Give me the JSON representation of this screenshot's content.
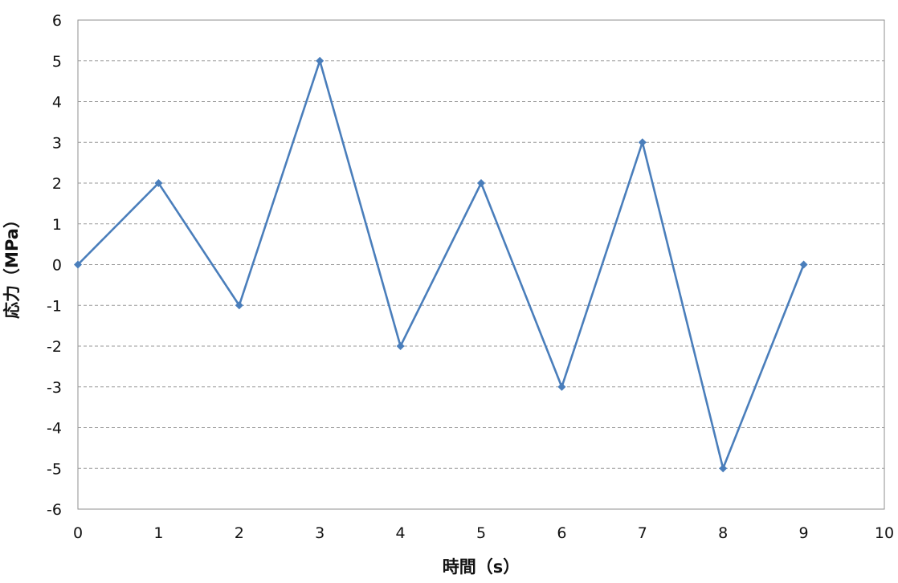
{
  "chart_data": {
    "type": "line",
    "title": "",
    "xlabel": "時間（s）",
    "ylabel": "応力（MPa）",
    "xlim": [
      0,
      10
    ],
    "ylim": [
      -6,
      6
    ],
    "x_ticks": [
      "0",
      "1",
      "2",
      "3",
      "4",
      "5",
      "6",
      "7",
      "8",
      "9",
      "10"
    ],
    "y_ticks": [
      "6",
      "5",
      "4",
      "3",
      "2",
      "1",
      "0",
      "-1",
      "-2",
      "-3",
      "-4",
      "-5",
      "-6"
    ],
    "grid": "horizontal dashed",
    "legend": "none",
    "series": [
      {
        "x": [
          0,
          1,
          2,
          3,
          4,
          5,
          6,
          7,
          8,
          9
        ],
        "values": [
          0,
          2,
          -1,
          5,
          -2,
          2,
          -3,
          3,
          -5,
          0
        ],
        "color": "#4a7ebb",
        "marker": "diamond"
      }
    ]
  }
}
